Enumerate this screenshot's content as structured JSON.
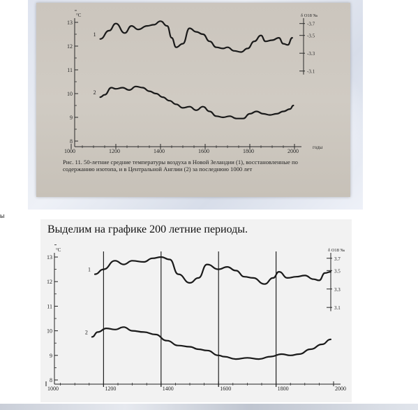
{
  "top_figure": {
    "caption": "Рис. 11. 50-летние средние температуры воздуха в Новой Зеландии (1), восстановленные по содержанию изотопа, и в Центральной Англии (2) за последнюю 1000 лет"
  },
  "side_char": "ы",
  "slide_title": "Выделим на графике 200 летние периоды.",
  "chart_data": [
    {
      "type": "line",
      "title": "",
      "left_axis": {
        "label": "°C",
        "ticks": [
          8,
          9,
          10,
          11,
          12,
          13
        ],
        "ylim": [
          8,
          13
        ]
      },
      "right_axis": {
        "label": "δ O18 ‰",
        "ticks": [
          "-3.7",
          "-3.5",
          "-3.3",
          "-3.1"
        ]
      },
      "x_axis": {
        "label": "годы",
        "ticks": [
          1000,
          1200,
          1400,
          1600,
          1800,
          2000
        ],
        "xlim": [
          1000,
          2000
        ]
      },
      "series": [
        {
          "name": "1",
          "x": [
            1130,
            1170,
            1200,
            1240,
            1270,
            1300,
            1340,
            1370,
            1400,
            1430,
            1450,
            1470,
            1500,
            1530,
            1560,
            1590,
            1620,
            1650,
            1680,
            1700,
            1730,
            1760,
            1790,
            1820,
            1850,
            1870,
            1900,
            1930,
            1950,
            1970,
            1990
          ],
          "values": [
            12.3,
            12.65,
            12.95,
            12.55,
            12.85,
            12.7,
            12.85,
            12.9,
            13.05,
            12.85,
            12.35,
            11.95,
            12.1,
            12.75,
            12.6,
            12.5,
            12.2,
            11.95,
            11.9,
            11.95,
            11.8,
            11.75,
            11.9,
            12.2,
            12.45,
            12.2,
            12.25,
            12.35,
            12.1,
            12.05,
            12.35
          ]
        },
        {
          "name": "2",
          "x": [
            1130,
            1150,
            1180,
            1200,
            1230,
            1260,
            1290,
            1320,
            1350,
            1380,
            1410,
            1440,
            1470,
            1500,
            1530,
            1560,
            1590,
            1620,
            1650,
            1680,
            1710,
            1740,
            1770,
            1800,
            1830,
            1860,
            1890,
            1920,
            1950,
            1980,
            1995
          ],
          "values": [
            9.85,
            9.95,
            10.25,
            10.2,
            10.25,
            10.15,
            10.3,
            10.25,
            10.1,
            10.0,
            9.85,
            9.7,
            9.55,
            9.4,
            9.45,
            9.3,
            9.45,
            9.25,
            9.05,
            9.0,
            9.05,
            8.95,
            8.95,
            9.15,
            9.25,
            9.15,
            9.1,
            9.15,
            9.25,
            9.35,
            9.5
          ]
        }
      ]
    },
    {
      "type": "line",
      "title": "",
      "left_axis": {
        "label": "°C",
        "ticks": [
          8,
          9,
          10,
          11,
          12,
          13
        ],
        "ylim": [
          8,
          13
        ]
      },
      "right_axis": {
        "label": "δ O18 ‰",
        "ticks": [
          "3.7",
          "3.5",
          "3.3",
          "3.1"
        ]
      },
      "x_axis": {
        "label": "годы",
        "ticks": [
          1000,
          1200,
          1400,
          1600,
          1800,
          2000
        ],
        "xlim": [
          1000,
          2000
        ]
      },
      "period_lines": [
        1200,
        1400,
        1600,
        1800
      ],
      "series": [
        {
          "name": "1",
          "x": [
            1170,
            1200,
            1240,
            1270,
            1300,
            1340,
            1370,
            1400,
            1430,
            1460,
            1500,
            1530,
            1560,
            1600,
            1630,
            1660,
            1690,
            1720,
            1760,
            1790,
            1810,
            1840,
            1870,
            1900,
            1930,
            1950,
            1970,
            1990
          ],
          "values": [
            12.3,
            12.5,
            12.85,
            12.7,
            12.85,
            12.8,
            12.95,
            13.0,
            12.9,
            12.3,
            11.95,
            12.15,
            12.7,
            12.5,
            12.6,
            12.45,
            12.2,
            12.15,
            11.9,
            12.15,
            12.4,
            12.15,
            12.2,
            12.25,
            12.1,
            12.05,
            12.35,
            12.4
          ]
        },
        {
          "name": "2",
          "x": [
            1160,
            1180,
            1210,
            1240,
            1270,
            1300,
            1340,
            1380,
            1420,
            1460,
            1500,
            1530,
            1560,
            1600,
            1620,
            1660,
            1700,
            1740,
            1780,
            1820,
            1850,
            1880,
            1920,
            1960,
            1990
          ],
          "values": [
            9.75,
            9.95,
            10.1,
            10.05,
            10.15,
            10.0,
            9.95,
            9.85,
            9.6,
            9.4,
            9.35,
            9.25,
            9.2,
            9.0,
            8.95,
            8.85,
            8.9,
            8.85,
            8.95,
            9.05,
            9.0,
            9.05,
            9.25,
            9.45,
            9.65
          ]
        }
      ]
    }
  ]
}
